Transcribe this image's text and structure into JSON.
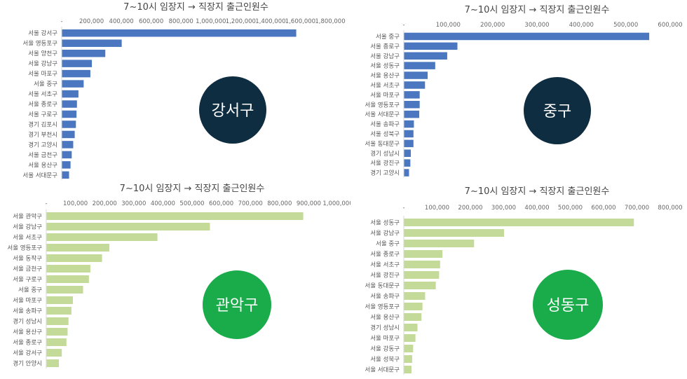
{
  "chart_data": [
    {
      "type": "bar",
      "orientation": "horizontal",
      "title": "7~10시 임장지 → 직장지 출근인원수",
      "badge": "강서구",
      "xlim": [
        0,
        1800000
      ],
      "xticks": [
        "-",
        "200,000",
        "400,000",
        "600,000",
        "800,000",
        "1,000,000",
        "1,200,000",
        "1,400,000",
        "1,600,000",
        "1,800,000"
      ],
      "categories": [
        "서울 강서구",
        "서울 영등포구",
        "서울 양천구",
        "서울 강남구",
        "서울 마포구",
        "서울 중구",
        "서울 서초구",
        "서울 종로구",
        "서울 구로구",
        "경기 김포시",
        "경기 부천시",
        "경기 고양시",
        "서울 금천구",
        "서울 용산구",
        "서울 서대문구"
      ],
      "values": [
        1570000,
        400000,
        290000,
        200000,
        190000,
        145000,
        110000,
        100000,
        97000,
        93000,
        85000,
        75000,
        65000,
        57000,
        47000
      ],
      "bar_color": "#4a77c0",
      "badge_color": "#0f2d40",
      "grid": false
    },
    {
      "type": "bar",
      "orientation": "horizontal",
      "title": "7~10시 임장지 → 직장지 출근인원수",
      "badge": "중구",
      "xlim": [
        0,
        600000
      ],
      "xticks": [
        "-",
        "100,000",
        "200,000",
        "300,000",
        "400,000",
        "500,000",
        "600,000"
      ],
      "categories": [
        "서울 중구",
        "서울 종로구",
        "서울 강남구",
        "서울 성동구",
        "서울 용산구",
        "서울 서초구",
        "서울 마포구",
        "서울 영등포구",
        "서울 서대문구",
        "서울 송파구",
        "서울 성북구",
        "서울 동대문구",
        "경기 성남시",
        "서울 광진구",
        "경기 고양시"
      ],
      "values": [
        552000,
        120000,
        97000,
        70000,
        53000,
        47000,
        35000,
        35000,
        34000,
        22000,
        21000,
        21000,
        15000,
        14000,
        11000
      ],
      "bar_color": "#4a77c0",
      "badge_color": "#0f2d40",
      "grid": false
    },
    {
      "type": "bar",
      "orientation": "horizontal",
      "title": "7~10시 임장지 → 직장지 출근인원수",
      "badge": "관악구",
      "xlim": [
        0,
        1000000
      ],
      "xticks": [
        "-",
        "100,000",
        "200,000",
        "300,000",
        "400,000",
        "500,000",
        "600,000",
        "700,000",
        "800,000",
        "900,000",
        "1,000,000"
      ],
      "categories": [
        "서울 관악구",
        "서울 강남구",
        "서울 서초구",
        "서울 영등포구",
        "서울 동작구",
        "서울 금천구",
        "서울 구로구",
        "서울 중구",
        "서울 마포구",
        "서울 송파구",
        "경기 성남시",
        "서울 용산구",
        "서울 종로구",
        "서울 강서구",
        "경기 안양시"
      ],
      "values": [
        880000,
        560000,
        380000,
        215000,
        190000,
        150000,
        145000,
        125000,
        90000,
        85000,
        75000,
        72000,
        68000,
        52000,
        42000
      ],
      "bar_color": "#c3da99",
      "badge_color": "#1aab4a",
      "grid": false
    },
    {
      "type": "bar",
      "orientation": "horizontal",
      "title": "7~10시 임장지 → 직장지 출근인원수",
      "badge": "성동구",
      "xlim": [
        0,
        800000
      ],
      "xticks": [
        "-",
        "100,000",
        "200,000",
        "300,000",
        "400,000",
        "500,000",
        "600,000",
        "700,000",
        "800,000"
      ],
      "categories": [
        "서울 성동구",
        "서울 강남구",
        "서울 중구",
        "서울 종로구",
        "서울 서초구",
        "서울 광진구",
        "서울 동대문구",
        "서울 송파구",
        "서울 영등포구",
        "서울 용산구",
        "경기 성남시",
        "서울 마포구",
        "서울 강동구",
        "서울 성북구",
        "서울 서대문구"
      ],
      "values": [
        690000,
        300000,
        210000,
        115000,
        108000,
        105000,
        95000,
        63000,
        55000,
        52000,
        40000,
        34000,
        27000,
        24000,
        22000
      ],
      "bar_color": "#c3da99",
      "badge_color": "#1aab4a",
      "grid": false
    }
  ]
}
